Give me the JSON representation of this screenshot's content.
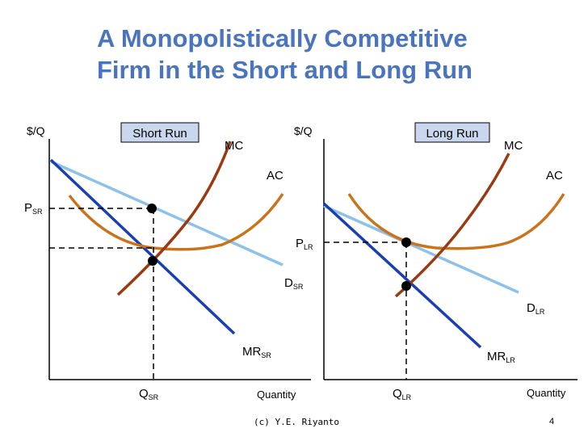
{
  "title": {
    "line1": "A Monopolistically Competitive",
    "line2": "Firm in the Short and Long Run"
  },
  "colors": {
    "title": "#4a74bd",
    "mc": "#9a3a10",
    "ac": "#c8741c",
    "demand": "#8ec1e8",
    "mr": "#1a3fb0",
    "panel_box": "#c9d6ee"
  },
  "short_run": {
    "panel_label": "Short Run",
    "y_axis_label": "$/Q",
    "x_axis_label": "Quantity",
    "mc_label": "MC",
    "ac_label": "AC",
    "price_label": "P",
    "price_sub": "SR",
    "demand_label": "D",
    "demand_sub": "SR",
    "mr_label": "MR",
    "mr_sub": "SR",
    "q_label": "Q",
    "q_sub": "SR"
  },
  "long_run": {
    "panel_label": "Long Run",
    "y_axis_label": "$/Q",
    "x_axis_label": "Quantity",
    "mc_label": "MC",
    "ac_label": "AC",
    "price_label": "P",
    "price_sub": "LR",
    "demand_label": "D",
    "demand_sub": "LR",
    "mr_label": "MR",
    "mr_sub": "LR",
    "q_label": "Q",
    "q_sub": "LR"
  },
  "footer": {
    "credit": "(c) Y.E. Riyanto",
    "page": "4"
  }
}
